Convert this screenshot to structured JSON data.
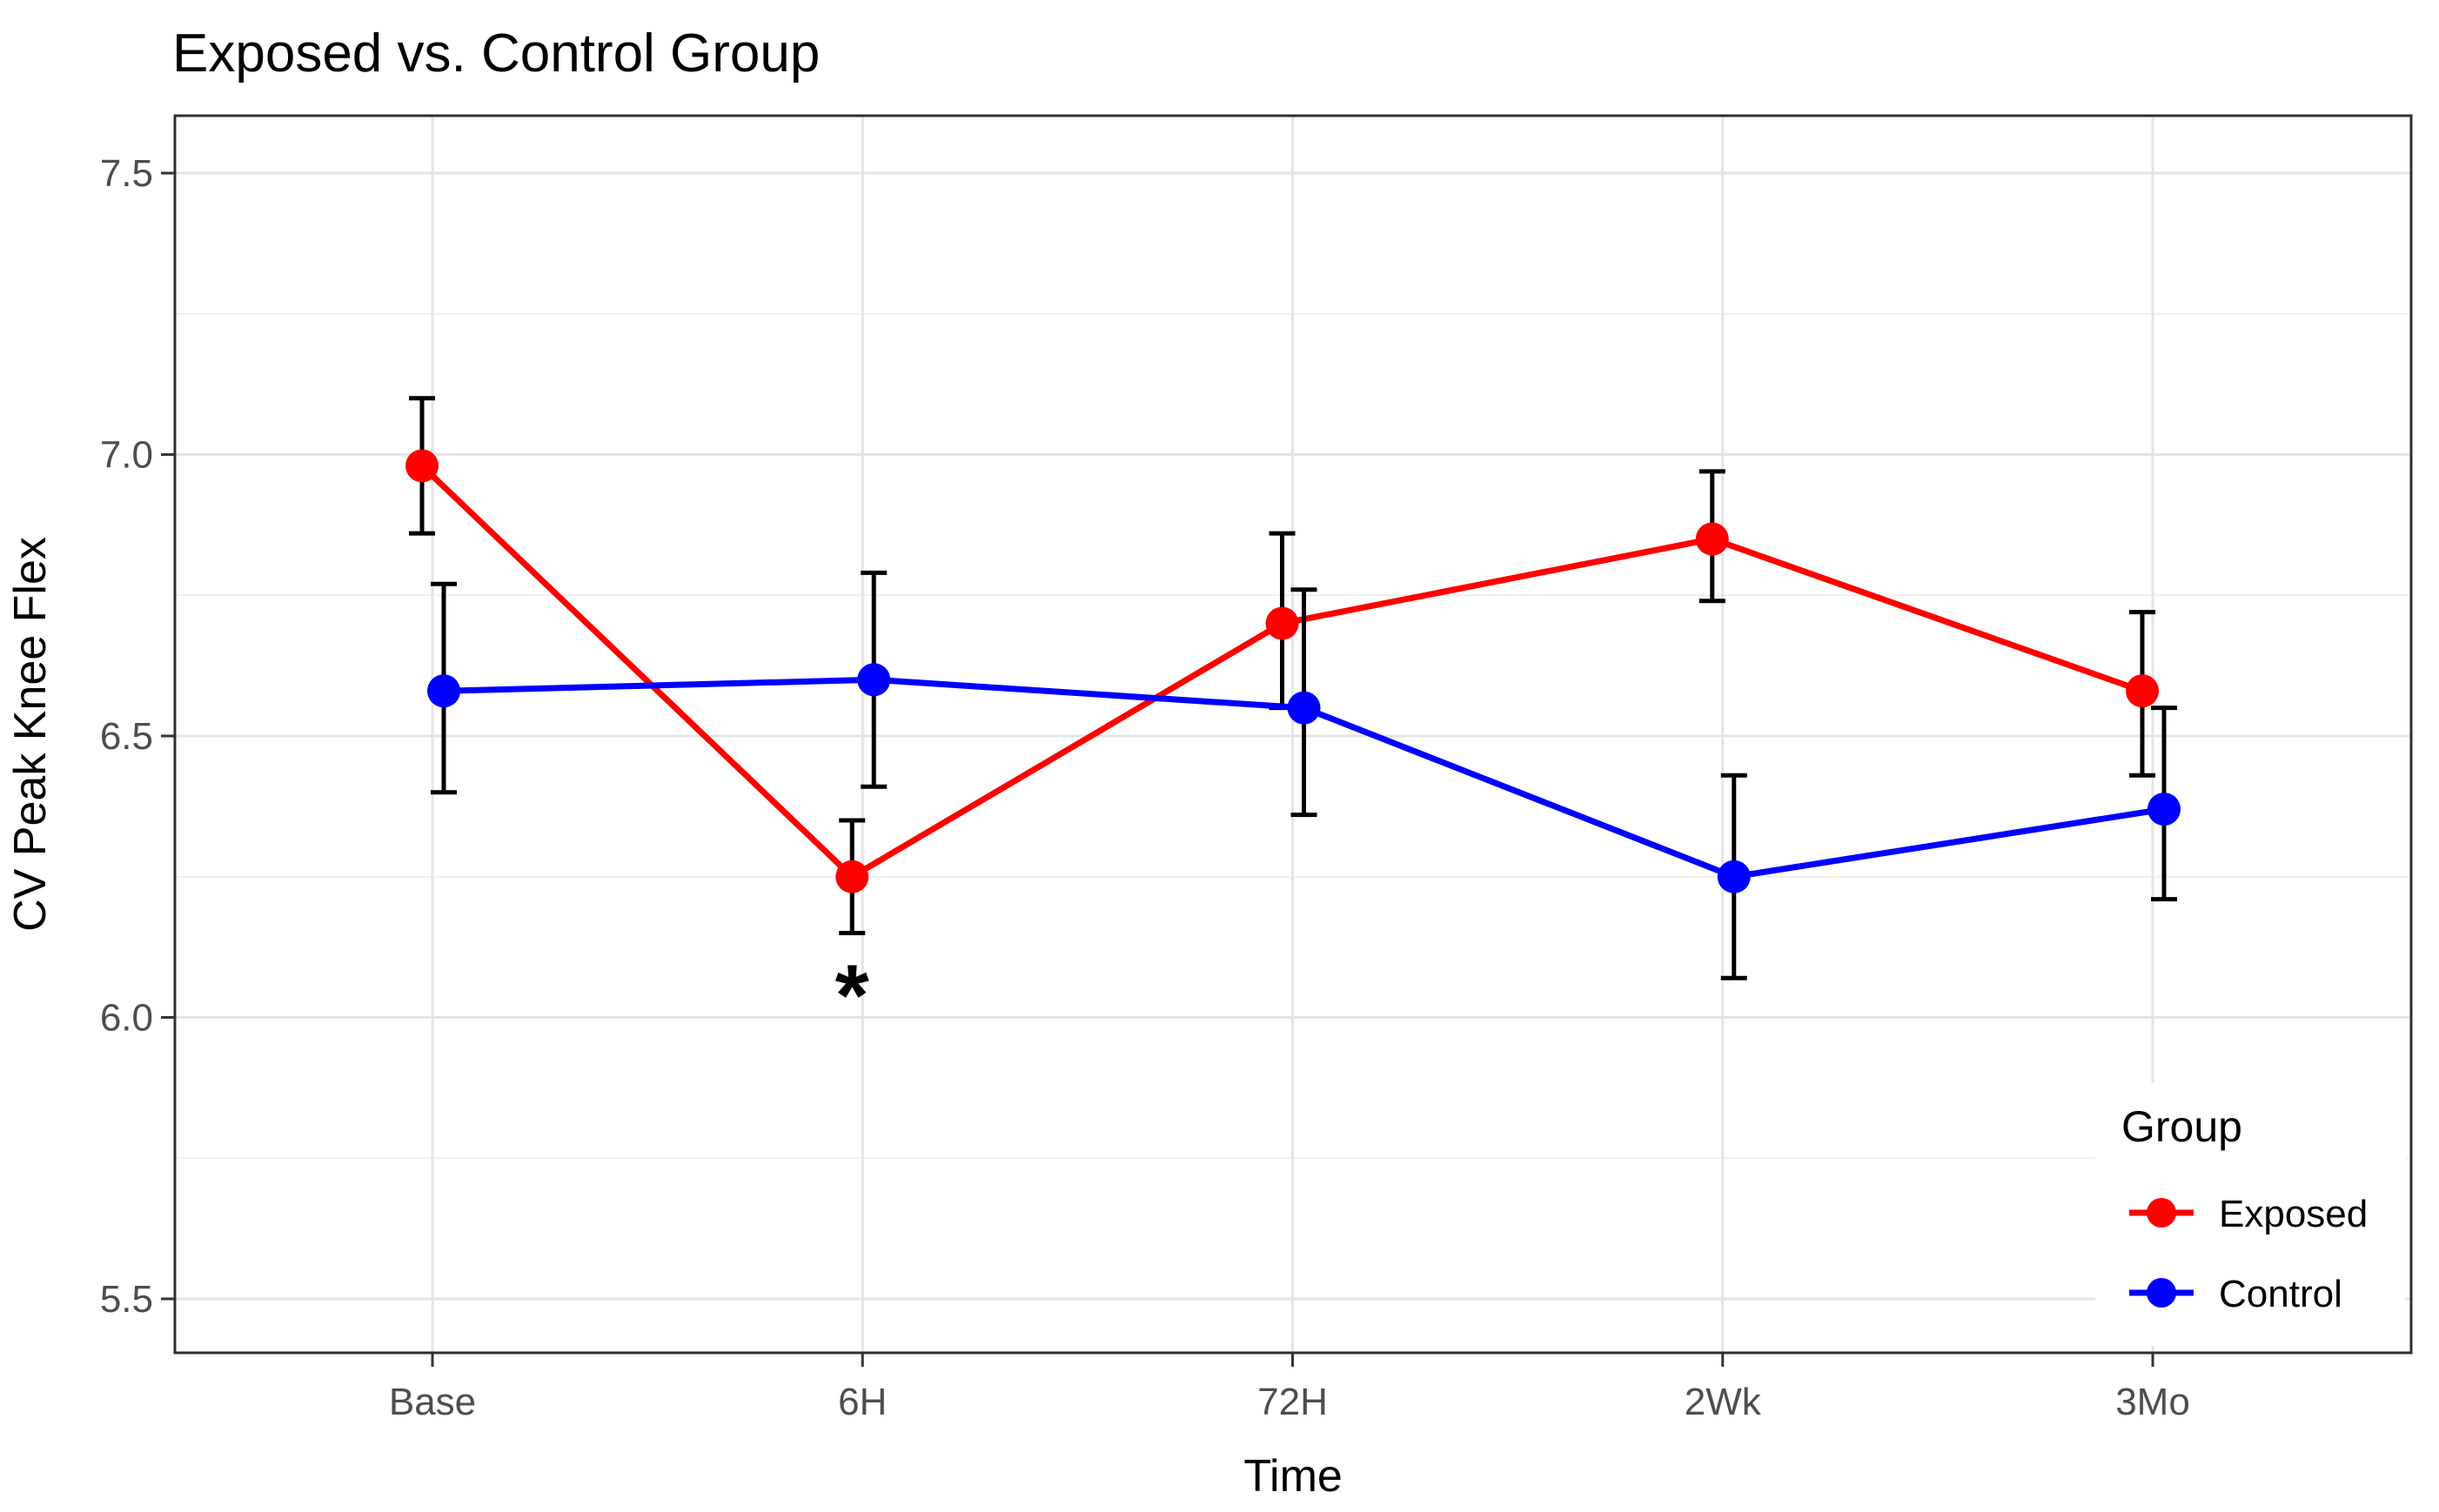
{
  "title": "Exposed vs. Control Group",
  "chart_data": {
    "type": "line",
    "title": "Exposed vs. Control Group",
    "xlabel": "Time",
    "ylabel": "CV Peak Knee Flex",
    "categories": [
      "Base",
      "6H",
      "72H",
      "2Wk",
      "3Mo"
    ],
    "ylim": [
      5.4,
      7.6
    ],
    "y_ticks": [
      5.5,
      6.0,
      6.5,
      7.0,
      7.5
    ],
    "y_tick_labels": [
      "5.5",
      "6.0",
      "6.5",
      "7.0",
      "7.5"
    ],
    "y_minor_ticks": [
      5.75,
      6.25,
      6.75,
      7.25
    ],
    "grid": "on",
    "series": [
      {
        "name": "Exposed",
        "color": "#FF0000",
        "values": [
          6.98,
          6.25,
          6.7,
          6.85,
          6.58
        ],
        "ci_low": [
          6.86,
          6.15,
          6.55,
          6.74,
          6.43
        ],
        "ci_high": [
          7.1,
          6.35,
          6.86,
          6.97,
          6.72
        ]
      },
      {
        "name": "Control",
        "color": "#0000FF",
        "values": [
          6.58,
          6.6,
          6.55,
          6.25,
          6.37
        ],
        "ci_low": [
          6.4,
          6.41,
          6.36,
          6.07,
          6.21
        ],
        "ci_high": [
          6.77,
          6.79,
          6.76,
          6.43,
          6.55
        ]
      }
    ],
    "annotations": [
      {
        "text": "*",
        "category": "6H",
        "series": "Exposed",
        "y": 6.06
      }
    ],
    "legend": {
      "title": "Group",
      "position": "inside-bottom-right",
      "entries": [
        {
          "label": "Exposed",
          "color": "#FF0000"
        },
        {
          "label": "Control",
          "color": "#0000FF"
        }
      ]
    },
    "colors": {
      "grid_major": "#e4e4e4",
      "grid_minor": "#efefef",
      "panel_border": "#2f2f2f",
      "tick_mark": "#333333",
      "tick_text": "#4d4d4d",
      "errorbar": "#000000",
      "background": "#ffffff"
    }
  }
}
